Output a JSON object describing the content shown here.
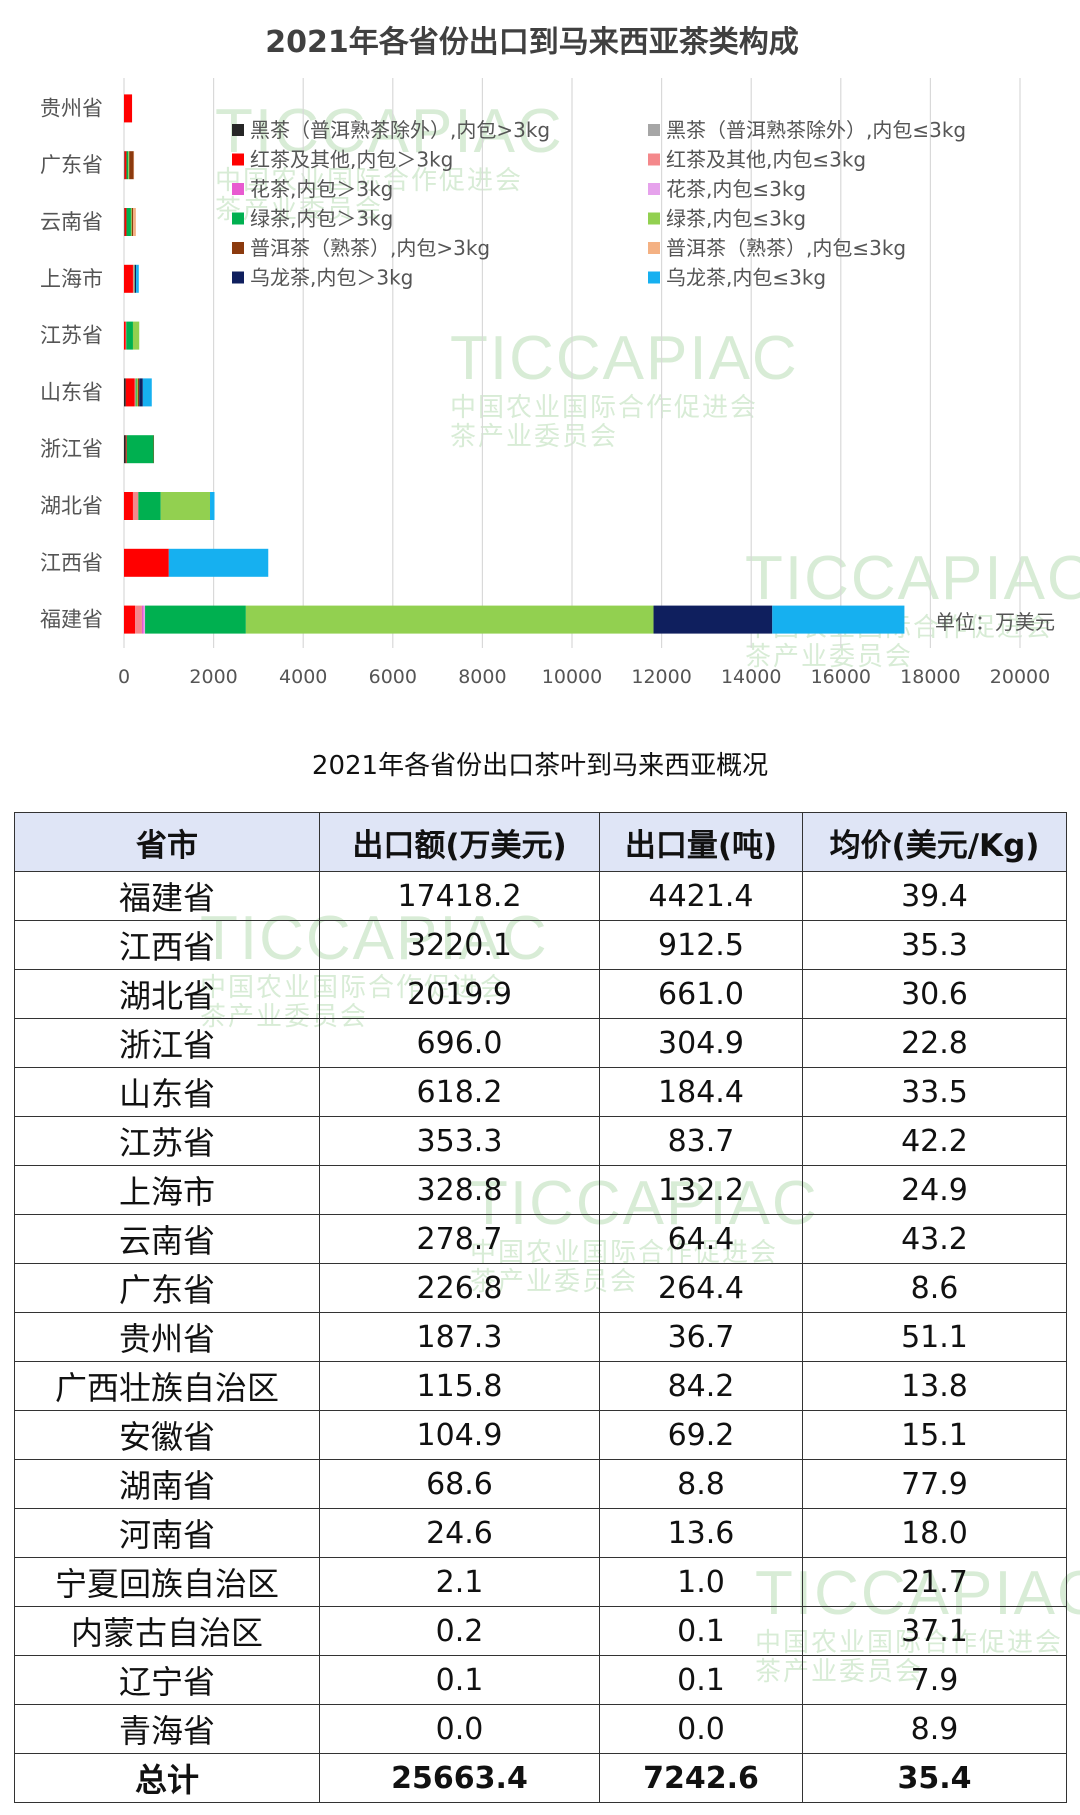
{
  "chart_data": {
    "type": "bar",
    "orientation": "horizontal",
    "stacked": true,
    "title": "2021年各省份出口到马来西亚茶类构成",
    "unit_label": "单位：万美元",
    "xlim": [
      0,
      20000
    ],
    "x_ticks": [
      0,
      2000,
      4000,
      6000,
      8000,
      10000,
      12000,
      14000,
      16000,
      18000,
      20000
    ],
    "grid": "vertical",
    "legend_position": "top, two columns",
    "categories": [
      "贵州省",
      "广东省",
      "云南省",
      "上海市",
      "江苏省",
      "山东省",
      "浙江省",
      "湖北省",
      "江西省",
      "福建省"
    ],
    "series": [
      {
        "name": "黑茶（普洱熟茶除外）,内包>3kg",
        "color": "#262626",
        "values": [
          0,
          10,
          10,
          0,
          0,
          40,
          40,
          0,
          0,
          0
        ]
      },
      {
        "name": "黑茶（普洱熟茶除外）,内包≤3kg",
        "color": "#a6a6a6",
        "values": [
          0,
          5,
          5,
          0,
          0,
          0,
          0,
          0,
          0,
          0
        ]
      },
      {
        "name": "红茶及其他,内包＞3kg",
        "color": "#ff0000",
        "values": [
          180,
          40,
          40,
          200,
          40,
          200,
          20,
          200,
          1000,
          250
        ]
      },
      {
        "name": "红茶及其他,内包≤3kg",
        "color": "#f4888b",
        "values": [
          0,
          0,
          0,
          20,
          10,
          20,
          0,
          120,
          0,
          150
        ]
      },
      {
        "name": "花茶,内包＞3kg",
        "color": "#e85ad0",
        "values": [
          0,
          0,
          0,
          0,
          0,
          0,
          0,
          0,
          0,
          40
        ]
      },
      {
        "name": "花茶,内包≤3kg",
        "color": "#e6a2ec",
        "values": [
          0,
          0,
          0,
          0,
          0,
          0,
          0,
          0,
          0,
          30
        ]
      },
      {
        "name": "绿茶,内包＞3kg",
        "color": "#00b050",
        "values": [
          0,
          40,
          100,
          10,
          150,
          20,
          600,
          500,
          0,
          2250
        ]
      },
      {
        "name": "绿茶,内包≤3kg",
        "color": "#92d050",
        "values": [
          0,
          20,
          20,
          10,
          140,
          30,
          0,
          1100,
          0,
          9100
        ]
      },
      {
        "name": "普洱茶（熟茶）,内包>3kg",
        "color": "#8b3a0e",
        "values": [
          0,
          100,
          30,
          0,
          0,
          30,
          10,
          0,
          0,
          0
        ]
      },
      {
        "name": "普洱茶（熟茶）,内包≤3kg",
        "color": "#f4b183",
        "values": [
          0,
          10,
          60,
          0,
          0,
          0,
          0,
          0,
          0,
          0
        ]
      },
      {
        "name": "乌龙茶,内包＞3kg",
        "color": "#0f1f5e",
        "values": [
          0,
          0,
          0,
          30,
          0,
          80,
          0,
          0,
          0,
          2650
        ]
      },
      {
        "name": "乌龙茶,内包≤3kg",
        "color": "#16b0f0",
        "values": [
          0,
          0,
          0,
          60,
          0,
          200,
          0,
          100,
          2220,
          2950
        ]
      }
    ]
  },
  "table": {
    "title": "2021年各省份出口茶叶到马来西亚概况",
    "headers": [
      "省市",
      "出口额(万美元)",
      "出口量(吨)",
      "均价(美元/Kg)"
    ],
    "rows": [
      [
        "福建省",
        "17418.2",
        "4421.4",
        "39.4"
      ],
      [
        "江西省",
        "3220.1",
        "912.5",
        "35.3"
      ],
      [
        "湖北省",
        "2019.9",
        "661.0",
        "30.6"
      ],
      [
        "浙江省",
        "696.0",
        "304.9",
        "22.8"
      ],
      [
        "山东省",
        "618.2",
        "184.4",
        "33.5"
      ],
      [
        "江苏省",
        "353.3",
        "83.7",
        "42.2"
      ],
      [
        "上海市",
        "328.8",
        "132.2",
        "24.9"
      ],
      [
        "云南省",
        "278.7",
        "64.4",
        "43.2"
      ],
      [
        "广东省",
        "226.8",
        "264.4",
        "8.6"
      ],
      [
        "贵州省",
        "187.3",
        "36.7",
        "51.1"
      ],
      [
        "广西壮族自治区",
        "115.8",
        "84.2",
        "13.8"
      ],
      [
        "安徽省",
        "104.9",
        "69.2",
        "15.1"
      ],
      [
        "湖南省",
        "68.6",
        "8.8",
        "77.9"
      ],
      [
        "河南省",
        "24.6",
        "13.6",
        "18.0"
      ],
      [
        "宁夏回族自治区",
        "2.1",
        "1.0",
        "21.7"
      ],
      [
        "内蒙古自治区",
        "0.2",
        "0.1",
        "37.1"
      ],
      [
        "辽宁省",
        "0.1",
        "0.1",
        "7.9"
      ],
      [
        "青海省",
        "0.0",
        "0.0",
        "8.9"
      ]
    ],
    "total": [
      "总计",
      "25663.4",
      "7242.6",
      "35.4"
    ]
  },
  "watermark": {
    "logo": "TICCAPIAC",
    "line1": "中国农业国际合作促进会",
    "line2": "茶产业委员会"
  }
}
